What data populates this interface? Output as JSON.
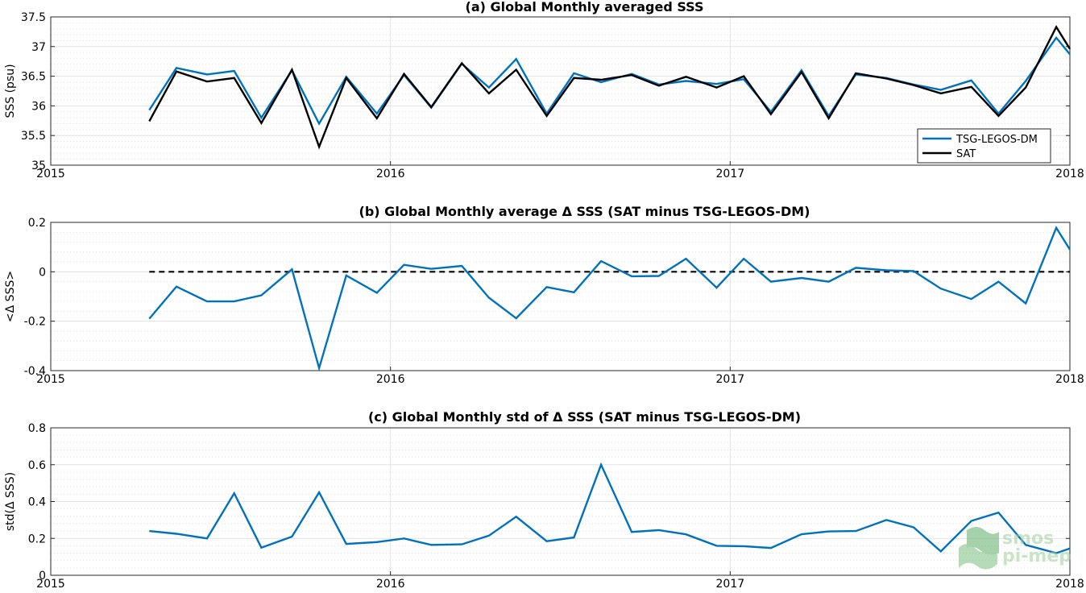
{
  "chart_data": [
    {
      "id": "a",
      "type": "line",
      "title": "(a) Global Monthly averaged SSS",
      "ylabel": "SSS (psu)",
      "xlabel": "",
      "xlim": [
        2015,
        2018
      ],
      "ylim": [
        35,
        37.5
      ],
      "xticks": [
        "2015",
        "2016",
        "2017",
        "2018"
      ],
      "yticks": [
        "35",
        "35.5",
        "36",
        "36.5",
        "37",
        "37.5"
      ],
      "grid": true,
      "legend": "bottom-right",
      "x": [
        2015.29,
        2015.37,
        2015.46,
        2015.54,
        2015.62,
        2015.71,
        2015.79,
        2015.87,
        2015.96,
        2016.04,
        2016.12,
        2016.21,
        2016.29,
        2016.37,
        2016.46,
        2016.54,
        2016.62,
        2016.71,
        2016.79,
        2016.87,
        2016.96,
        2017.04,
        2017.12,
        2017.21,
        2017.29,
        2017.37,
        2017.46,
        2017.54,
        2017.62,
        2017.71,
        2017.79,
        2017.87,
        2017.96,
        2018.0
      ],
      "series": [
        {
          "name": "TSG-LEGOS-DM",
          "color": "#0072bd",
          "values": [
            35.93,
            36.64,
            36.53,
            36.59,
            35.8,
            36.6,
            35.7,
            36.49,
            35.87,
            36.52,
            35.97,
            36.71,
            36.31,
            36.79,
            35.87,
            36.55,
            36.4,
            36.54,
            36.36,
            36.42,
            36.37,
            36.45,
            35.9,
            36.6,
            35.83,
            36.53,
            36.47,
            36.36,
            36.27,
            36.43,
            35.87,
            36.42,
            37.15,
            36.87
          ]
        },
        {
          "name": "SAT",
          "color": "#000000",
          "values": [
            35.74,
            36.58,
            36.41,
            36.47,
            35.71,
            36.61,
            35.31,
            36.47,
            35.79,
            36.54,
            35.98,
            36.72,
            36.21,
            36.61,
            35.83,
            36.47,
            36.44,
            36.52,
            36.34,
            36.49,
            36.31,
            36.5,
            35.86,
            36.57,
            35.79,
            36.55,
            36.46,
            36.35,
            36.21,
            36.32,
            35.83,
            36.31,
            37.33,
            36.96
          ]
        }
      ]
    },
    {
      "id": "b",
      "type": "line",
      "title": "(b) Global Monthly average Δ SSS (SAT minus TSG-LEGOS-DM)",
      "ylabel": "<Δ SSS>",
      "xlabel": "",
      "xlim": [
        2015,
        2018
      ],
      "ylim": [
        -0.4,
        0.2
      ],
      "xticks": [
        "2015",
        "2016",
        "2017",
        "2018"
      ],
      "yticks": [
        "-0.4",
        "-0.2",
        "0",
        "0.2"
      ],
      "grid": true,
      "reference_line": {
        "y": 0,
        "style": "dashed",
        "color": "#000000"
      },
      "x": [
        2015.29,
        2015.37,
        2015.46,
        2015.54,
        2015.62,
        2015.71,
        2015.79,
        2015.87,
        2015.96,
        2016.04,
        2016.12,
        2016.21,
        2016.29,
        2016.37,
        2016.46,
        2016.54,
        2016.62,
        2016.71,
        2016.79,
        2016.87,
        2016.96,
        2017.04,
        2017.12,
        2017.21,
        2017.29,
        2017.37,
        2017.46,
        2017.54,
        2017.62,
        2017.71,
        2017.79,
        2017.87,
        2017.96,
        2018.0
      ],
      "series": [
        {
          "color": "#0072bd",
          "values": [
            -0.19,
            -0.06,
            -0.12,
            -0.12,
            -0.095,
            0.01,
            -0.39,
            -0.015,
            -0.085,
            0.028,
            0.012,
            0.024,
            -0.105,
            -0.188,
            -0.062,
            -0.083,
            0.043,
            -0.018,
            -0.017,
            0.053,
            -0.064,
            0.053,
            -0.04,
            -0.025,
            -0.04,
            0.016,
            0.006,
            0.003,
            -0.068,
            -0.11,
            -0.04,
            -0.128,
            0.178,
            0.09
          ]
        }
      ]
    },
    {
      "id": "c",
      "type": "line",
      "title": "(c) Global Monthly std of Δ SSS (SAT minus TSG-LEGOS-DM)",
      "ylabel": "std(Δ SSS)",
      "xlabel": "",
      "xlim": [
        2015,
        2018
      ],
      "ylim": [
        0,
        0.8
      ],
      "xticks": [
        "2015",
        "2016",
        "2017",
        "2018"
      ],
      "yticks": [
        "0",
        "0.2",
        "0.4",
        "0.6",
        "0.8"
      ],
      "grid": true,
      "x": [
        2015.29,
        2015.37,
        2015.46,
        2015.54,
        2015.62,
        2015.71,
        2015.79,
        2015.87,
        2015.96,
        2016.04,
        2016.12,
        2016.21,
        2016.29,
        2016.37,
        2016.46,
        2016.54,
        2016.62,
        2016.71,
        2016.79,
        2016.87,
        2016.96,
        2017.04,
        2017.12,
        2017.21,
        2017.29,
        2017.37,
        2017.46,
        2017.54,
        2017.62,
        2017.71,
        2017.79,
        2017.87,
        2017.96,
        2018.0
      ],
      "series": [
        {
          "color": "#0072bd",
          "values": [
            0.24,
            0.225,
            0.2,
            0.445,
            0.15,
            0.21,
            0.45,
            0.17,
            0.18,
            0.2,
            0.165,
            0.168,
            0.215,
            0.318,
            0.185,
            0.205,
            0.6,
            0.235,
            0.245,
            0.222,
            0.16,
            0.158,
            0.148,
            0.223,
            0.238,
            0.24,
            0.3,
            0.26,
            0.13,
            0.295,
            0.34,
            0.165,
            0.12,
            0.145
          ]
        }
      ]
    }
  ],
  "watermark": {
    "line1": "smos",
    "line2": "pi-mep"
  }
}
